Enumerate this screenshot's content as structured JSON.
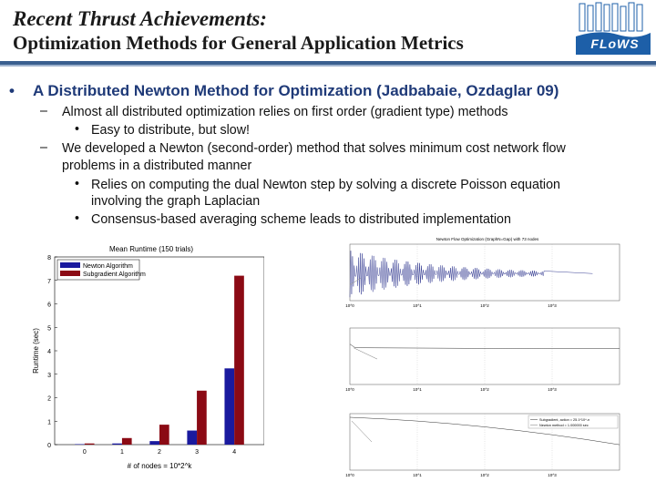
{
  "slide": {
    "title_line1": "Recent Thrust Achievements:",
    "title_line2": "Optimization Methods for General Application Metrics",
    "logo_text": "FLoWS",
    "bullet_main": "A Distributed Newton Method for Optimization (Jadbabaie, Ozdaglar 09)",
    "sub1": "Almost all distributed optimization relies on first order (gradient type) methods",
    "sub1_1": "Easy to distribute, but slow!",
    "sub2_line1": "We developed a Newton (second-order) method that solves minimum cost network flow",
    "sub2_line2": "problems in a distributed manner",
    "sub2_1_line1": "Relies on computing the dual Newton step by solving a discrete Poisson equation",
    "sub2_1_line2": "involving the graph Laplacian",
    "sub2_2": "Consensus-based averaging scheme leads to distributed implementation",
    "bullet_symbol": "•",
    "dash_symbol": "–"
  },
  "chart_data": [
    {
      "type": "bar",
      "title": "Mean Runtime (150 trials)",
      "xlabel": "# of nodes = 10*2^k",
      "ylabel": "Runtime (sec)",
      "categories": [
        "0",
        "1",
        "2",
        "3",
        "4"
      ],
      "ylim": [
        0,
        8
      ],
      "yticks": [
        0,
        1,
        2,
        3,
        4,
        5,
        6,
        7,
        8
      ],
      "legend_position": "top-left",
      "series": [
        {
          "name": "Newton Algorithm",
          "color": "#1a1a9e",
          "values": [
            0.02,
            0.05,
            0.15,
            0.6,
            3.25
          ]
        },
        {
          "name": "Subgradient Algorithm",
          "color": "#8b0a14",
          "values": [
            0.05,
            0.28,
            0.85,
            2.3,
            7.2
          ]
        }
      ]
    },
    {
      "type": "line",
      "title": "Newton Flow Optimization (GraphN=Gap) with 73 nodes",
      "panels": 3,
      "xscale": "log",
      "xticks": [
        "10^0",
        "10^1",
        "10^2",
        "10^3"
      ],
      "legend_entries": [
        "Subgradient, action = 25.1*10^-n",
        "Newton method = 1.000000 sec"
      ]
    }
  ],
  "colors": {
    "accent": "#1f3a78",
    "rule": "#3a5f8f",
    "logo_bg": "#1d5fa8"
  }
}
